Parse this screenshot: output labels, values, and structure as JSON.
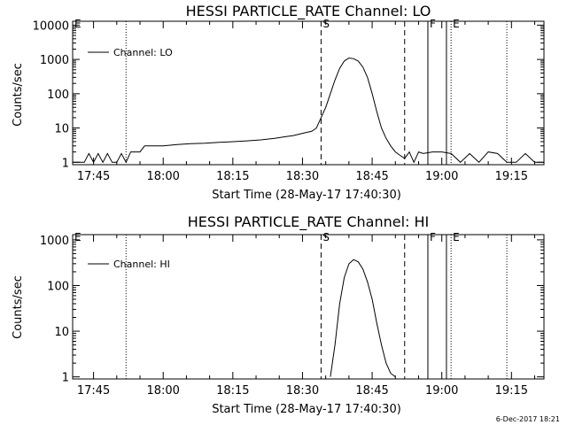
{
  "stamp": "6-Dec-2017 18:21",
  "chart_data": [
    {
      "type": "line",
      "title": "HESSI PARTICLE_RATE Channel: LO",
      "xlabel": "Start Time (28-May-17 17:40:30)",
      "ylabel": "Counts/sec",
      "xlim": [
        "17:40:30",
        "19:22"
      ],
      "yscale": "log",
      "ylim": [
        0.85,
        13000
      ],
      "xticks": [
        "17:45",
        "18:00",
        "18:15",
        "18:30",
        "18:45",
        "19:00",
        "19:15"
      ],
      "yticks": [
        "1",
        "10",
        "100",
        "1000",
        "10000"
      ],
      "legend": {
        "position": "top-left",
        "entries": [
          "Channel: LO"
        ]
      },
      "markers": [
        {
          "label": "E",
          "time": "17:40:30",
          "style": "dotted"
        },
        {
          "label": "",
          "time": "17:52",
          "style": "dotted"
        },
        {
          "label": "S",
          "time": "18:34",
          "style": "dashed"
        },
        {
          "label": "",
          "time": "18:52",
          "style": "dashed"
        },
        {
          "label": "F",
          "time": "18:57",
          "style": "solid"
        },
        {
          "label": "",
          "time": "19:01",
          "style": "solid"
        },
        {
          "label": "E",
          "time": "19:02",
          "style": "dotted"
        },
        {
          "label": "",
          "time": "19:14",
          "style": "dotted"
        }
      ],
      "series": [
        {
          "name": "Channel: LO",
          "x": [
            "17:40:30",
            "17:43",
            "17:44",
            "17:45",
            "17:46",
            "17:47",
            "17:48",
            "17:49",
            "17:50",
            "17:51",
            "17:52",
            "17:53",
            "17:54",
            "17:55",
            "17:56",
            "17:58",
            "18:00",
            "18:03",
            "18:06",
            "18:09",
            "18:12",
            "18:15",
            "18:18",
            "18:21",
            "18:24",
            "18:26",
            "18:28",
            "18:30",
            "18:31",
            "18:32",
            "18:33",
            "18:34",
            "18:35",
            "18:36",
            "18:37",
            "18:38",
            "18:39",
            "18:40",
            "18:41",
            "18:42",
            "18:43",
            "18:44",
            "18:45",
            "18:46",
            "18:47",
            "18:48",
            "18:49",
            "18:50",
            "18:51",
            "18:52",
            "18:53",
            "18:54",
            "18:55",
            "18:56",
            "18:58",
            "19:00",
            "19:02",
            "19:04",
            "19:06",
            "19:08",
            "19:10",
            "19:12",
            "19:14",
            "19:16",
            "19:18",
            "19:20",
            "19:22"
          ],
          "y": [
            1,
            1,
            1.8,
            1,
            1.8,
            1,
            1.8,
            1,
            1,
            1.8,
            1,
            2,
            2,
            2,
            3,
            3,
            3,
            3.3,
            3.5,
            3.6,
            3.8,
            4,
            4.2,
            4.5,
            5,
            5.5,
            6,
            7,
            7.5,
            8,
            10,
            20,
            40,
            100,
            250,
            550,
            900,
            1100,
            1050,
            900,
            600,
            300,
            100,
            30,
            10,
            5,
            3,
            2,
            1.6,
            1.3,
            2,
            1,
            2,
            1.8,
            2,
            2,
            1.8,
            1,
            1.8,
            1,
            2,
            1.8,
            1,
            1,
            1.8,
            1,
            1
          ]
        }
      ]
    },
    {
      "type": "line",
      "title": "HESSI PARTICLE_RATE Channel: HI",
      "xlabel": "Start Time (28-May-17 17:40:30)",
      "ylabel": "Counts/sec",
      "xlim": [
        "17:40:30",
        "19:22"
      ],
      "yscale": "log",
      "ylim": [
        0.9,
        1300
      ],
      "xticks": [
        "17:45",
        "18:00",
        "18:15",
        "18:30",
        "18:45",
        "19:00",
        "19:15"
      ],
      "yticks": [
        "1",
        "10",
        "100",
        "1000"
      ],
      "legend": {
        "position": "top-left",
        "entries": [
          "Channel: HI"
        ]
      },
      "markers": [
        {
          "label": "E",
          "time": "17:40:30",
          "style": "dotted"
        },
        {
          "label": "",
          "time": "17:52",
          "style": "dotted"
        },
        {
          "label": "S",
          "time": "18:34",
          "style": "dashed"
        },
        {
          "label": "",
          "time": "18:52",
          "style": "dashed"
        },
        {
          "label": "F",
          "time": "18:57",
          "style": "solid"
        },
        {
          "label": "",
          "time": "19:01",
          "style": "solid"
        },
        {
          "label": "E",
          "time": "19:02",
          "style": "dotted"
        },
        {
          "label": "",
          "time": "19:14",
          "style": "dotted"
        }
      ],
      "series": [
        {
          "name": "Channel: HI",
          "x": [
            "18:36",
            "18:37",
            "18:38",
            "18:39",
            "18:40",
            "18:41",
            "18:42",
            "18:43",
            "18:44",
            "18:45",
            "18:46",
            "18:47",
            "18:48",
            "18:49",
            "18:50"
          ],
          "y": [
            1,
            5,
            40,
            150,
            300,
            370,
            330,
            230,
            120,
            50,
            15,
            5,
            2,
            1.2,
            1
          ]
        }
      ]
    }
  ]
}
